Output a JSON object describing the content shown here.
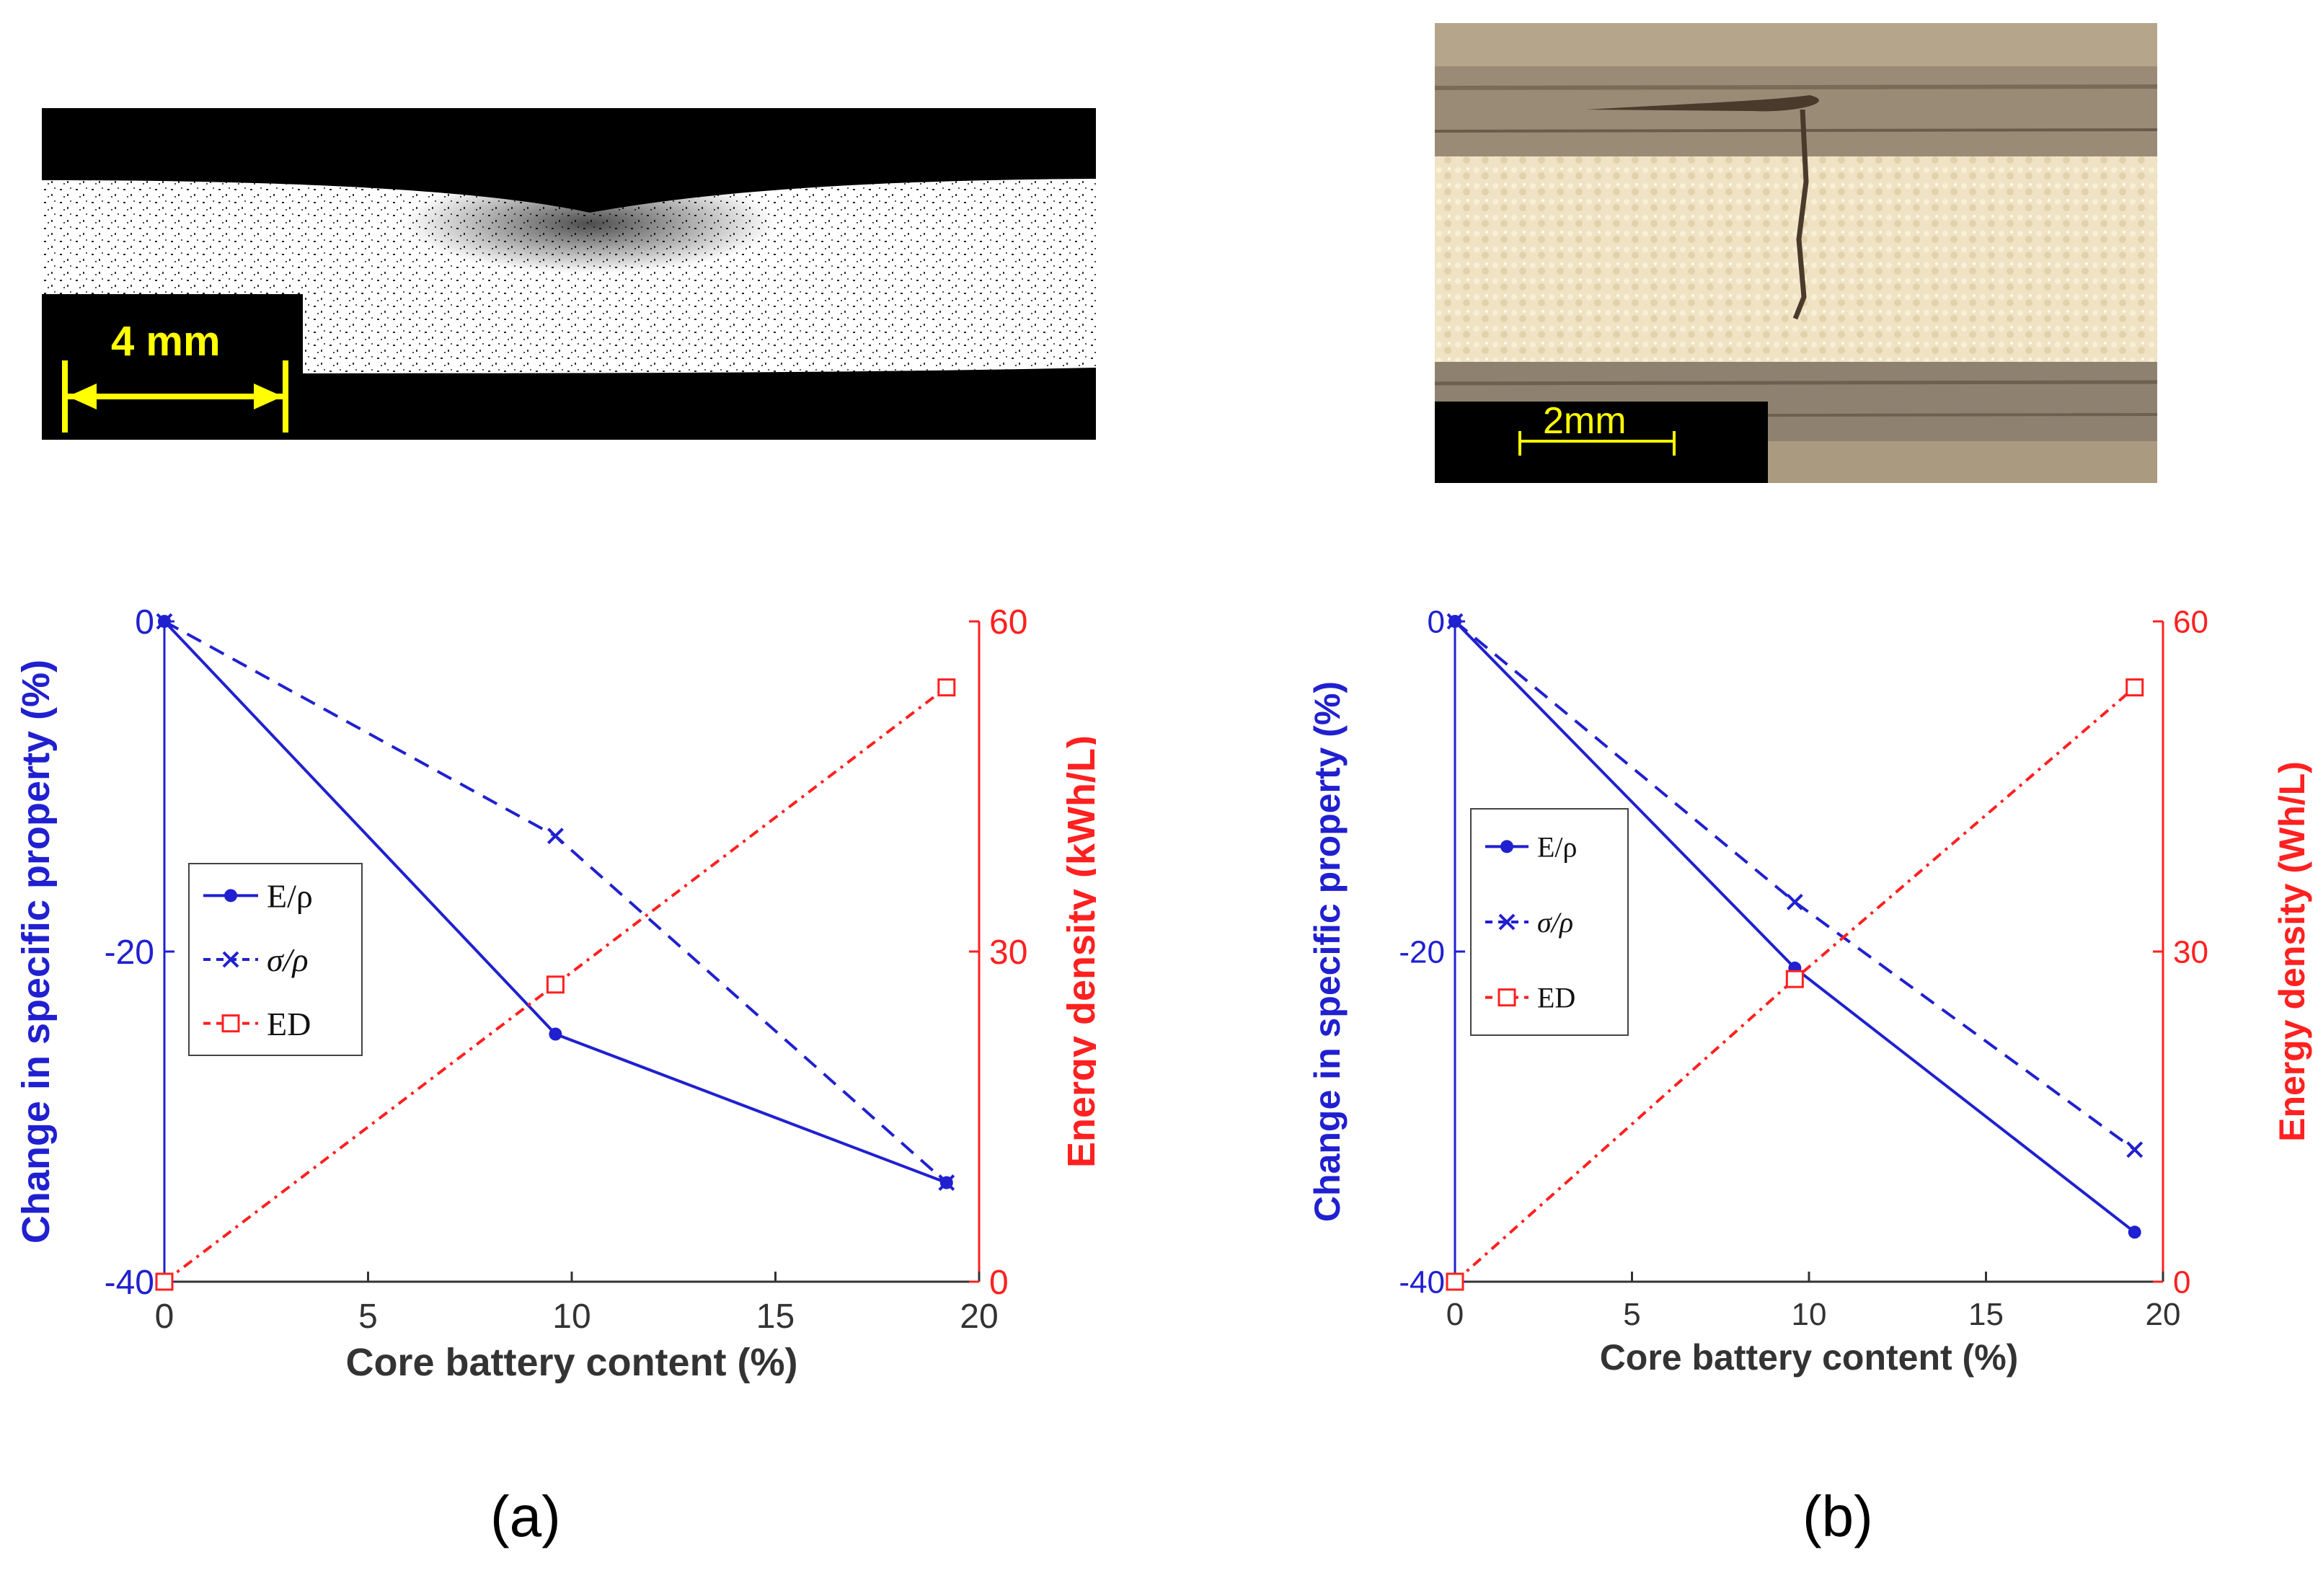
{
  "images": {
    "a": {
      "scale_label": "4 mm",
      "description_color": "#ffff00"
    },
    "b": {
      "scale_label": "2mm",
      "description_color": "#ffff00"
    }
  },
  "colors": {
    "left_axis": "#2020d0",
    "right_axis": "#ff2020",
    "tick": "#333333"
  },
  "panel_labels": {
    "a": "(a)",
    "b": "(b)"
  },
  "chart_data": [
    {
      "type": "line",
      "xlabel": "Core battery content (%)",
      "ylabel_left": "Change in specific property (%)",
      "ylabel_right": "Energy density (kWh/L)",
      "xlim": [
        0,
        20
      ],
      "ylim_left": [
        -40,
        0
      ],
      "ylim_right": [
        0,
        60
      ],
      "xticks": [
        "0",
        "5",
        "10",
        "15",
        "20"
      ],
      "yticks_left": [
        "0",
        "-20",
        "-40"
      ],
      "yticks_right": [
        "60",
        "30",
        "0"
      ],
      "legend": [
        "E/ρ",
        "σ/ρ",
        "ED"
      ],
      "series": [
        {
          "name": "E/ρ",
          "axis": "left",
          "x": [
            0,
            9.6,
            19.2
          ],
          "y": [
            0,
            -25,
            -34
          ]
        },
        {
          "name": "σ/ρ",
          "axis": "left",
          "x": [
            0,
            9.6,
            19.2
          ],
          "y": [
            0,
            -13,
            -34
          ]
        },
        {
          "name": "ED",
          "axis": "right",
          "x": [
            0,
            9.6,
            19.2
          ],
          "y": [
            0,
            27,
            54
          ]
        }
      ]
    },
    {
      "type": "line",
      "xlabel": "Core battery content (%)",
      "ylabel_left": "Change in specific property (%)",
      "ylabel_right": "Energy density (Wh/L)",
      "xlim": [
        0,
        20
      ],
      "ylim_left": [
        -40,
        0
      ],
      "ylim_right": [
        0,
        60
      ],
      "xticks": [
        "0",
        "5",
        "10",
        "15",
        "20"
      ],
      "yticks_left": [
        "0",
        "-20",
        "-40"
      ],
      "yticks_right": [
        "60",
        "30",
        "0"
      ],
      "legend": [
        "E/ρ",
        "σ/ρ",
        "ED"
      ],
      "series": [
        {
          "name": "E/ρ",
          "axis": "left",
          "x": [
            0,
            9.6,
            19.2
          ],
          "y": [
            0,
            -21,
            -37
          ]
        },
        {
          "name": "σ/ρ",
          "axis": "left",
          "x": [
            0,
            9.6,
            19.2
          ],
          "y": [
            0,
            -17,
            -32
          ]
        },
        {
          "name": "ED",
          "axis": "right",
          "x": [
            0,
            9.6,
            19.2
          ],
          "y": [
            0,
            27.5,
            54
          ]
        }
      ]
    }
  ]
}
